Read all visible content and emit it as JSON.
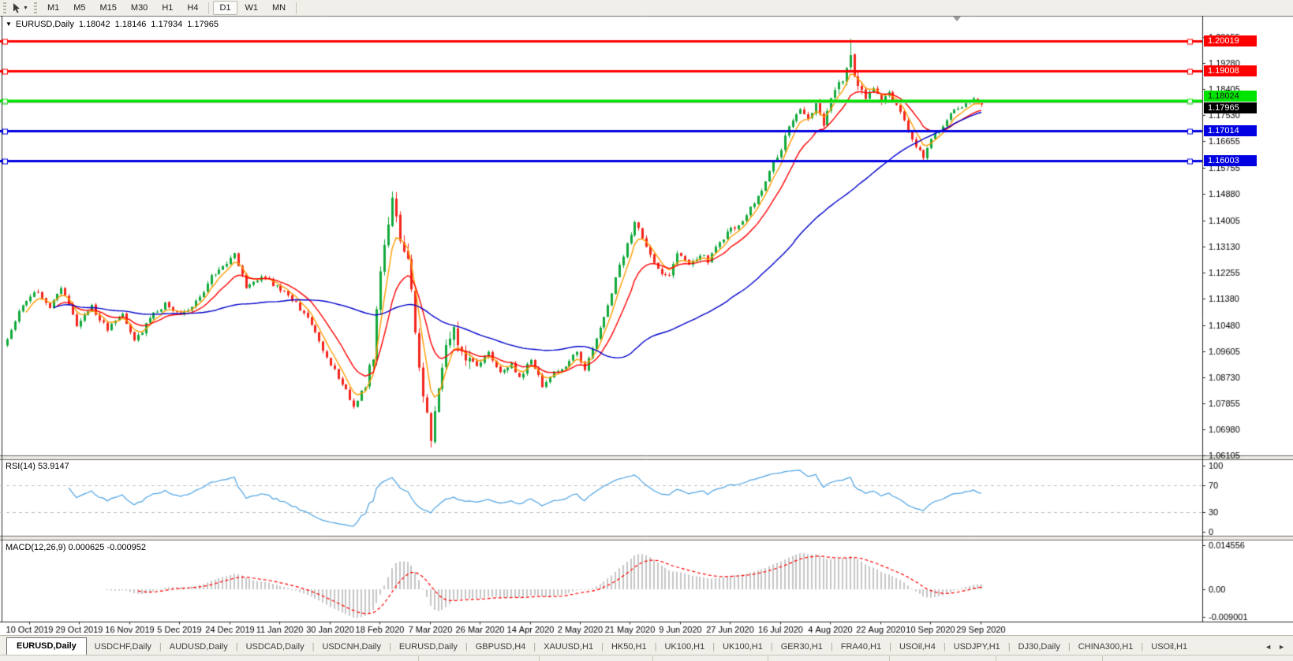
{
  "ui": {
    "toolbar": {
      "dropdown_caret": "▼",
      "timeframes": [
        {
          "label": "M1",
          "active": false,
          "group": 1
        },
        {
          "label": "M5",
          "active": false,
          "group": 1
        },
        {
          "label": "M15",
          "active": false,
          "group": 1
        },
        {
          "label": "M30",
          "active": false,
          "group": 1
        },
        {
          "label": "H1",
          "active": false,
          "group": 1
        },
        {
          "label": "H4",
          "active": false,
          "group": 1
        },
        {
          "label": "D1",
          "active": true,
          "group": 2
        },
        {
          "label": "W1",
          "active": false,
          "group": 2
        },
        {
          "label": "MN",
          "active": false,
          "group": 2
        }
      ]
    },
    "header": {
      "collapse_caret": "▼",
      "symbol": "EURUSD,Daily",
      "open": "1.18042",
      "high": "1.18146",
      "low": "1.17934",
      "close": "1.17965"
    },
    "rsi_label": "RSI(14) 53.9147",
    "macd_label": "MACD(12,26,9) 0.000625 -0.000952",
    "tabs": {
      "separator": "|",
      "scroll_left": "◄",
      "scroll_right": "►",
      "items": [
        {
          "label": "EURUSD,Daily",
          "active": true
        },
        {
          "label": "USDCHF,Daily",
          "active": false
        },
        {
          "label": "AUDUSD,Daily",
          "active": false
        },
        {
          "label": "USDCAD,Daily",
          "active": false
        },
        {
          "label": "USDCNH,Daily",
          "active": false
        },
        {
          "label": "EURUSD,Daily",
          "active": false
        },
        {
          "label": "GBPUSD,H4",
          "active": false
        },
        {
          "label": "XAUUSD,H1",
          "active": false
        },
        {
          "label": "HK50,H1",
          "active": false
        },
        {
          "label": "UK100,H1",
          "active": false
        },
        {
          "label": "UK100,H1",
          "active": false
        },
        {
          "label": "GER30,H1",
          "active": false
        },
        {
          "label": "FRA40,H1",
          "active": false
        },
        {
          "label": "USOil,H4",
          "active": false
        },
        {
          "label": "USDJPY,H1",
          "active": false
        },
        {
          "label": "DJ30,Daily",
          "active": false
        },
        {
          "label": "CHINA300,H1",
          "active": false
        },
        {
          "label": "USOil,H1",
          "active": false
        }
      ]
    }
  },
  "chart_data": {
    "type": "candlestick",
    "symbol": "EURUSD",
    "timeframe": "Daily",
    "ohlc_display": {
      "open": 1.18042,
      "high": 1.18146,
      "low": 1.17934,
      "close": 1.17965
    },
    "current_price": {
      "label": "1.17965",
      "value": 1.17965,
      "badge_bg": "#000000",
      "badge_text": "#ffffff",
      "line_color": "#bdbdbd"
    },
    "price_axis": {
      "top_value": 1.2082,
      "bottom_value": 1.06105,
      "ticks": [
        "1.20155",
        "1.19280",
        "1.18405",
        "1.17530",
        "1.16655",
        "1.15755",
        "1.14880",
        "1.14005",
        "1.13130",
        "1.12255",
        "1.11380",
        "1.10480",
        "1.09605",
        "1.08730",
        "1.07855",
        "1.06980",
        "1.06105"
      ]
    },
    "time_axis": {
      "labels": [
        "10 Oct 2019",
        "29 Oct 2019",
        "16 Nov 2019",
        "5 Dec 2019",
        "24 Dec 2019",
        "11 Jan 2020",
        "30 Jan 2020",
        "18 Feb 2020",
        "7 Mar 2020",
        "26 Mar 2020",
        "14 Apr 2020",
        "2 May 2020",
        "21 May 2020",
        "9 Jun 2020",
        "27 Jun 2020",
        "16 Jul 2020",
        "4 Aug 2020",
        "22 Aug 2020",
        "10 Sep 2020",
        "29 Sep 2020"
      ]
    },
    "levels": [
      {
        "label": "1.20019",
        "value": 1.20019,
        "color": "#ff0000",
        "text_color": "#ffffff",
        "width": 3
      },
      {
        "label": "1.19008",
        "value": 1.19008,
        "color": "#ff0000",
        "text_color": "#ffffff",
        "width": 3
      },
      {
        "label": "1.18024",
        "value": 1.18024,
        "color": "#00e400",
        "text_color": "#1a1a1a",
        "width": 4
      },
      {
        "label": "1.17014",
        "value": 1.17014,
        "color": "#0000e0",
        "text_color": "#ffffff",
        "width": 3
      },
      {
        "label": "1.16003",
        "value": 1.16003,
        "color": "#0000e0",
        "text_color": "#ffffff",
        "width": 3
      }
    ],
    "candles": {
      "count": 254,
      "up_color": "#12a93c",
      "down_color": "#f3251d",
      "seed": 11,
      "anchor_closes": [
        [
          0,
          1.1
        ],
        [
          4,
          1.112
        ],
        [
          8,
          1.1165
        ],
        [
          11,
          1.11
        ],
        [
          14,
          1.118
        ],
        [
          18,
          1.105
        ],
        [
          22,
          1.111
        ],
        [
          26,
          1.103
        ],
        [
          30,
          1.109
        ],
        [
          33,
          1.099
        ],
        [
          37,
          1.107
        ],
        [
          41,
          1.112
        ],
        [
          45,
          1.108
        ],
        [
          50,
          1.114
        ],
        [
          53,
          1.121
        ],
        [
          57,
          1.126
        ],
        [
          59,
          1.1285
        ],
        [
          62,
          1.1175
        ],
        [
          66,
          1.1215
        ],
        [
          70,
          1.1175
        ],
        [
          74,
          1.1135
        ],
        [
          78,
          1.107
        ],
        [
          82,
          1.0965
        ],
        [
          86,
          1.087
        ],
        [
          90,
          1.078
        ],
        [
          93,
          1.0845
        ],
        [
          95,
          1.095
        ],
        [
          97,
          1.123
        ],
        [
          100,
          1.147
        ],
        [
          102,
          1.1345
        ],
        [
          104,
          1.127
        ],
        [
          106,
          1.103
        ],
        [
          108,
          1.082
        ],
        [
          110,
          1.065
        ],
        [
          111,
          1.077
        ],
        [
          113,
          1.0925
        ],
        [
          116,
          1.103
        ],
        [
          117,
          1.099
        ],
        [
          119,
          1.095
        ],
        [
          122,
          1.091
        ],
        [
          125,
          1.096
        ],
        [
          128,
          1.0885
        ],
        [
          131,
          1.0925
        ],
        [
          133,
          1.087
        ],
        [
          136,
          1.0935
        ],
        [
          139,
          1.0845
        ],
        [
          142,
          1.0885
        ],
        [
          145,
          1.091
        ],
        [
          148,
          1.096
        ],
        [
          150,
          1.0895
        ],
        [
          153,
          1.1
        ],
        [
          156,
          1.111
        ],
        [
          158,
          1.121
        ],
        [
          161,
          1.132
        ],
        [
          163,
          1.1395
        ],
        [
          166,
          1.131
        ],
        [
          169,
          1.123
        ],
        [
          172,
          1.1215
        ],
        [
          174,
          1.129
        ],
        [
          177,
          1.125
        ],
        [
          180,
          1.1285
        ],
        [
          182,
          1.1265
        ],
        [
          185,
          1.133
        ],
        [
          188,
          1.137
        ],
        [
          191,
          1.1395
        ],
        [
          193,
          1.144
        ],
        [
          196,
          1.1505
        ],
        [
          198,
          1.157
        ],
        [
          201,
          1.164
        ],
        [
          203,
          1.172
        ],
        [
          206,
          1.178
        ],
        [
          208,
          1.174
        ],
        [
          210,
          1.1795
        ],
        [
          212,
          1.172
        ],
        [
          214,
          1.1815
        ],
        [
          216,
          1.1855
        ],
        [
          218,
          1.1905
        ],
        [
          219,
          1.195
        ],
        [
          221,
          1.1845
        ],
        [
          223,
          1.1815
        ],
        [
          225,
          1.184
        ],
        [
          227,
          1.18
        ],
        [
          229,
          1.1825
        ],
        [
          231,
          1.1785
        ],
        [
          233,
          1.174
        ],
        [
          234,
          1.17
        ],
        [
          236,
          1.165
        ],
        [
          238,
          1.1615
        ],
        [
          240,
          1.167
        ],
        [
          242,
          1.1705
        ],
        [
          244,
          1.174
        ],
        [
          246,
          1.1765
        ],
        [
          249,
          1.179
        ],
        [
          251,
          1.1805
        ],
        [
          253,
          1.17965
        ]
      ],
      "spikes": {
        "90": {
          "low": 1.0778
        },
        "100": {
          "high": 1.1497
        },
        "110": {
          "low": 1.0637
        },
        "219": {
          "high": 1.201
        }
      },
      "volatility_windows": [
        [
          94,
          120,
          0.0045
        ],
        [
          215,
          222,
          0.0028
        ]
      ],
      "base_volatility": 0.0016
    },
    "moving_averages": [
      {
        "method": "ema",
        "period": 5,
        "color": "#ff9c00"
      },
      {
        "method": "ema",
        "period": 13,
        "color": "#ff0000"
      },
      {
        "method": "sma",
        "period": 55,
        "color": "#0000cc"
      }
    ],
    "rsi": {
      "period": 14,
      "display_value": 53.9147,
      "color": "#4da3e3",
      "levels": [
        70,
        30
      ],
      "ticks": [
        {
          "label": "100",
          "value": 100
        },
        {
          "label": "70",
          "value": 70
        },
        {
          "label": "30",
          "value": 30
        },
        {
          "label": "0",
          "value": 0
        }
      ]
    },
    "macd": {
      "fast": 12,
      "slow": 26,
      "signal": 9,
      "display_main": 0.000625,
      "display_signal": -0.000952,
      "histogram_color": "#c6c6c6",
      "signal_color": "#ff0000",
      "ticks": [
        {
          "label": "0.014556",
          "value": 0.014556
        },
        {
          "label": "0.00",
          "value": 0
        },
        {
          "label": "-0.009001",
          "value": -0.009001
        }
      ]
    }
  }
}
